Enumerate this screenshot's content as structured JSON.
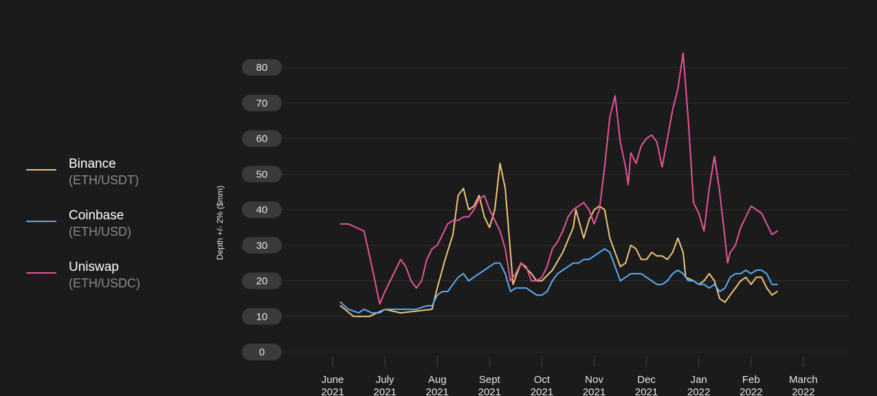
{
  "chart_data": {
    "type": "line",
    "ylabel": "Depth +/- 2% ($mm)",
    "xlabel": "",
    "ylim": [
      0,
      80
    ],
    "yticks": [
      "0",
      "10",
      "20",
      "30",
      "40",
      "50",
      "60",
      "70",
      "80"
    ],
    "xticks": [
      {
        "month": "June",
        "year": "2021",
        "t": 0
      },
      {
        "month": "July",
        "year": "2021",
        "t": 1
      },
      {
        "month": "Aug",
        "year": "2021",
        "t": 2
      },
      {
        "month": "Sept",
        "year": "2021",
        "t": 3
      },
      {
        "month": "Oct",
        "year": "2021",
        "t": 4
      },
      {
        "month": "Nov",
        "year": "2021",
        "t": 5
      },
      {
        "month": "Dec",
        "year": "2021",
        "t": 6
      },
      {
        "month": "Jan",
        "year": "2022",
        "t": 7
      },
      {
        "month": "Feb",
        "year": "2022",
        "t": 8
      },
      {
        "month": "March",
        "year": "2022",
        "t": 9
      }
    ],
    "grid": true,
    "legend_position": "left",
    "series": [
      {
        "name": "Binance",
        "pair": "(ETH/USDT)",
        "color": "#f2c57c",
        "points": [
          [
            0.15,
            13
          ],
          [
            0.4,
            10
          ],
          [
            0.7,
            10
          ],
          [
            1.0,
            12
          ],
          [
            1.3,
            11
          ],
          [
            1.6,
            11.5
          ],
          [
            1.9,
            12
          ],
          [
            2.0,
            18
          ],
          [
            2.15,
            26
          ],
          [
            2.3,
            33
          ],
          [
            2.4,
            44
          ],
          [
            2.5,
            46
          ],
          [
            2.6,
            40
          ],
          [
            2.7,
            41
          ],
          [
            2.8,
            44
          ],
          [
            2.9,
            38
          ],
          [
            3.0,
            35
          ],
          [
            3.1,
            40
          ],
          [
            3.2,
            53
          ],
          [
            3.3,
            46
          ],
          [
            3.4,
            28
          ],
          [
            3.45,
            19
          ],
          [
            3.6,
            25
          ],
          [
            3.8,
            22
          ],
          [
            3.9,
            20
          ],
          [
            4.0,
            20
          ],
          [
            4.2,
            23
          ],
          [
            4.4,
            28
          ],
          [
            4.6,
            35
          ],
          [
            4.65,
            40
          ],
          [
            4.8,
            32
          ],
          [
            4.9,
            37
          ],
          [
            5.0,
            40
          ],
          [
            5.1,
            41
          ],
          [
            5.2,
            40
          ],
          [
            5.3,
            32
          ],
          [
            5.4,
            28
          ],
          [
            5.5,
            24
          ],
          [
            5.6,
            25
          ],
          [
            5.7,
            30
          ],
          [
            5.8,
            29
          ],
          [
            5.9,
            26
          ],
          [
            6.0,
            26
          ],
          [
            6.1,
            28
          ],
          [
            6.2,
            27
          ],
          [
            6.3,
            27
          ],
          [
            6.4,
            26
          ],
          [
            6.5,
            28
          ],
          [
            6.6,
            32
          ],
          [
            6.7,
            28
          ],
          [
            6.75,
            21
          ],
          [
            6.9,
            20
          ],
          [
            7.0,
            19
          ],
          [
            7.1,
            20
          ],
          [
            7.2,
            22
          ],
          [
            7.3,
            20
          ],
          [
            7.4,
            15
          ],
          [
            7.5,
            14
          ],
          [
            7.6,
            16
          ],
          [
            7.7,
            18
          ],
          [
            7.8,
            20
          ],
          [
            7.9,
            21
          ],
          [
            8.0,
            19
          ],
          [
            8.1,
            21
          ],
          [
            8.2,
            21
          ],
          [
            8.3,
            18
          ],
          [
            8.4,
            16
          ],
          [
            8.5,
            17
          ]
        ]
      },
      {
        "name": "Coinbase",
        "pair": "(ETH/USD)",
        "color": "#5aaef5",
        "points": [
          [
            0.15,
            14
          ],
          [
            0.3,
            12
          ],
          [
            0.5,
            11
          ],
          [
            0.6,
            12
          ],
          [
            0.75,
            11
          ],
          [
            0.9,
            11
          ],
          [
            1.0,
            12
          ],
          [
            1.2,
            12
          ],
          [
            1.4,
            12
          ],
          [
            1.6,
            12
          ],
          [
            1.8,
            13
          ],
          [
            1.9,
            13
          ],
          [
            2.0,
            16
          ],
          [
            2.1,
            17
          ],
          [
            2.2,
            17
          ],
          [
            2.3,
            19
          ],
          [
            2.4,
            21
          ],
          [
            2.5,
            22
          ],
          [
            2.6,
            20
          ],
          [
            2.7,
            21
          ],
          [
            2.8,
            22
          ],
          [
            2.9,
            23
          ],
          [
            3.0,
            24
          ],
          [
            3.1,
            25
          ],
          [
            3.2,
            25
          ],
          [
            3.3,
            22
          ],
          [
            3.4,
            17
          ],
          [
            3.5,
            18
          ],
          [
            3.6,
            18
          ],
          [
            3.7,
            18
          ],
          [
            3.8,
            17
          ],
          [
            3.9,
            16
          ],
          [
            4.0,
            16
          ],
          [
            4.1,
            17
          ],
          [
            4.2,
            20
          ],
          [
            4.3,
            22
          ],
          [
            4.4,
            23
          ],
          [
            4.5,
            24
          ],
          [
            4.6,
            25
          ],
          [
            4.7,
            25
          ],
          [
            4.8,
            26
          ],
          [
            4.9,
            26
          ],
          [
            5.0,
            27
          ],
          [
            5.1,
            28
          ],
          [
            5.2,
            29
          ],
          [
            5.3,
            28
          ],
          [
            5.4,
            24
          ],
          [
            5.5,
            20
          ],
          [
            5.6,
            21
          ],
          [
            5.7,
            22
          ],
          [
            5.8,
            22
          ],
          [
            5.9,
            22
          ],
          [
            6.0,
            21
          ],
          [
            6.1,
            20
          ],
          [
            6.2,
            19
          ],
          [
            6.3,
            19
          ],
          [
            6.4,
            20
          ],
          [
            6.5,
            22
          ],
          [
            6.6,
            23
          ],
          [
            6.7,
            22
          ],
          [
            6.8,
            20
          ],
          [
            6.9,
            20
          ],
          [
            7.0,
            19
          ],
          [
            7.1,
            19
          ],
          [
            7.2,
            18
          ],
          [
            7.3,
            19
          ],
          [
            7.4,
            17
          ],
          [
            7.5,
            18
          ],
          [
            7.6,
            21
          ],
          [
            7.7,
            22
          ],
          [
            7.8,
            22
          ],
          [
            7.9,
            23
          ],
          [
            8.0,
            22
          ],
          [
            8.1,
            23
          ],
          [
            8.2,
            23
          ],
          [
            8.3,
            22
          ],
          [
            8.4,
            19
          ],
          [
            8.5,
            19
          ]
        ]
      },
      {
        "name": "Uniswap",
        "pair": "(ETH/USDC)",
        "color": "#e8549a",
        "points": [
          [
            0.15,
            36
          ],
          [
            0.3,
            36
          ],
          [
            0.45,
            35
          ],
          [
            0.6,
            34
          ],
          [
            0.75,
            24
          ],
          [
            0.9,
            13.5
          ],
          [
            1.0,
            17
          ],
          [
            1.1,
            20
          ],
          [
            1.2,
            23
          ],
          [
            1.3,
            26
          ],
          [
            1.4,
            24
          ],
          [
            1.5,
            20
          ],
          [
            1.6,
            18
          ],
          [
            1.7,
            20
          ],
          [
            1.8,
            26
          ],
          [
            1.9,
            29
          ],
          [
            2.0,
            30
          ],
          [
            2.1,
            33
          ],
          [
            2.2,
            36
          ],
          [
            2.3,
            37
          ],
          [
            2.4,
            37
          ],
          [
            2.5,
            38
          ],
          [
            2.6,
            38
          ],
          [
            2.7,
            40
          ],
          [
            2.8,
            43
          ],
          [
            2.9,
            44
          ],
          [
            3.0,
            40
          ],
          [
            3.1,
            37
          ],
          [
            3.2,
            34
          ],
          [
            3.3,
            29
          ],
          [
            3.4,
            20
          ],
          [
            3.5,
            22
          ],
          [
            3.6,
            25
          ],
          [
            3.7,
            24
          ],
          [
            3.8,
            20
          ],
          [
            3.9,
            20
          ],
          [
            4.0,
            21
          ],
          [
            4.1,
            24
          ],
          [
            4.2,
            29
          ],
          [
            4.3,
            31
          ],
          [
            4.4,
            34
          ],
          [
            4.5,
            38
          ],
          [
            4.6,
            40
          ],
          [
            4.7,
            41
          ],
          [
            4.8,
            42
          ],
          [
            4.9,
            40
          ],
          [
            5.0,
            36
          ],
          [
            5.1,
            40
          ],
          [
            5.2,
            52
          ],
          [
            5.3,
            66
          ],
          [
            5.4,
            72
          ],
          [
            5.5,
            59
          ],
          [
            5.6,
            52
          ],
          [
            5.65,
            47
          ],
          [
            5.7,
            56
          ],
          [
            5.8,
            53
          ],
          [
            5.9,
            58
          ],
          [
            6.0,
            60
          ],
          [
            6.1,
            61
          ],
          [
            6.2,
            59
          ],
          [
            6.3,
            52
          ],
          [
            6.4,
            60
          ],
          [
            6.5,
            68
          ],
          [
            6.6,
            74
          ],
          [
            6.7,
            84
          ],
          [
            6.8,
            65
          ],
          [
            6.9,
            42
          ],
          [
            7.0,
            39
          ],
          [
            7.1,
            34
          ],
          [
            7.2,
            46
          ],
          [
            7.3,
            55
          ],
          [
            7.4,
            45
          ],
          [
            7.5,
            32
          ],
          [
            7.55,
            25
          ],
          [
            7.6,
            28
          ],
          [
            7.7,
            30
          ],
          [
            7.8,
            35
          ],
          [
            7.9,
            38
          ],
          [
            8.0,
            41
          ],
          [
            8.1,
            40
          ],
          [
            8.2,
            39
          ],
          [
            8.3,
            36
          ],
          [
            8.4,
            33
          ],
          [
            8.5,
            34
          ]
        ]
      }
    ]
  }
}
